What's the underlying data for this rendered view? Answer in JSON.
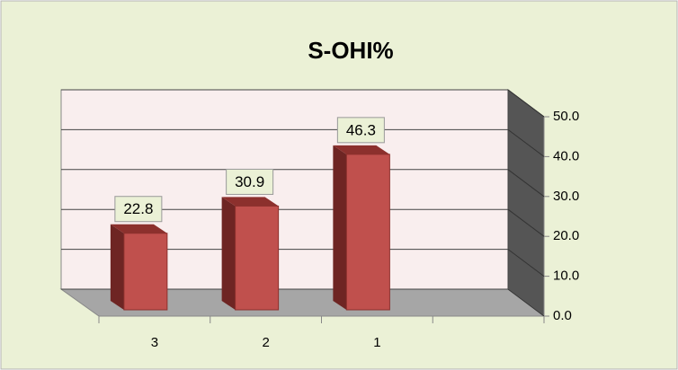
{
  "chart_data": {
    "type": "bar3d",
    "title": "S-OHI%",
    "categories": [
      "3",
      "2",
      "1",
      null
    ],
    "values": [
      22.8,
      30.9,
      46.3,
      null
    ],
    "color": "#c0504d",
    "ylim": [
      0,
      50
    ],
    "yticks": [
      {
        "value": 0,
        "label": "0.0"
      },
      {
        "value": 10,
        "label": "10.0"
      },
      {
        "value": 20,
        "label": "20.0"
      },
      {
        "value": 30,
        "label": "30.0"
      },
      {
        "value": 40,
        "label": "40.0"
      },
      {
        "value": 50,
        "label": "50.0"
      }
    ],
    "grid": true
  }
}
